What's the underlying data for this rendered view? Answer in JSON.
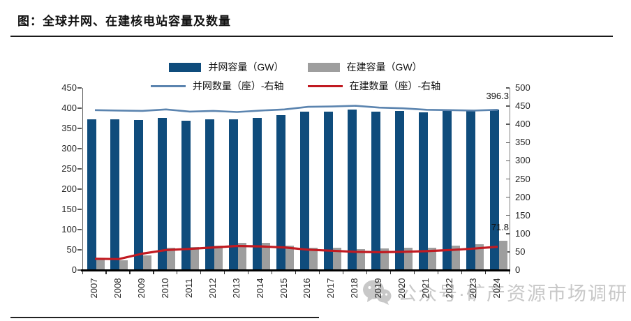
{
  "page": {
    "title": "图：全球并网、在建核电站容量及数量"
  },
  "watermark": {
    "icon": "wechat-icon",
    "text": "公众号·矿产资源市场调研"
  },
  "annotation_grid_capacity_2024": "396.3",
  "annotation_under_capacity_2024": "71.8",
  "chart_data": {
    "type": "bar+line",
    "title": "图：全球并网、在建核电站容量及数量",
    "categories": [
      "2007",
      "2008",
      "2009",
      "2010",
      "2011",
      "2012",
      "2013",
      "2014",
      "2015",
      "2016",
      "2017",
      "2018",
      "2019",
      "2020",
      "2021",
      "2022",
      "2023",
      "2024"
    ],
    "series": [
      {
        "name": "并网容量（GW）",
        "type": "bar",
        "axis": "left",
        "color": "#0f4c7c",
        "values": [
          372.2,
          372.5,
          370.7,
          375.3,
          368.8,
          373.1,
          371.7,
          376.2,
          382.9,
          391.1,
          392.1,
          396.4,
          392.1,
          392.6,
          389.5,
          393.8,
          393.0,
          396.3
        ]
      },
      {
        "name": "在建容量（GW）",
        "type": "bar",
        "axis": "left",
        "color": "#9e9e9e",
        "values": [
          26,
          25,
          37,
          56,
          57,
          60,
          67,
          67,
          60,
          55,
          56,
          52,
          54,
          55,
          56,
          61,
          64,
          71.8
        ]
      },
      {
        "name": "并网数量（座）-右轴",
        "type": "line",
        "axis": "right",
        "color": "#5b84af",
        "values": [
          439,
          438,
          437,
          441,
          435,
          437,
          434,
          438,
          441,
          448,
          449,
          451,
          446,
          444,
          440,
          439,
          438,
          440
        ]
      },
      {
        "name": "在建数量（座）-右轴",
        "type": "line",
        "axis": "right",
        "color": "#c11a21",
        "values": [
          31,
          30,
          45,
          55,
          58,
          62,
          66,
          65,
          62,
          56,
          53,
          50,
          49,
          50,
          52,
          55,
          59,
          64
        ]
      }
    ],
    "left_axis": {
      "min": 0,
      "max": 450,
      "ticks": [
        0,
        50,
        100,
        150,
        200,
        250,
        300,
        350,
        400,
        450
      ]
    },
    "right_axis": {
      "min": 0,
      "max": 500,
      "ticks": [
        0,
        50,
        100,
        150,
        200,
        250,
        300,
        350,
        400,
        450,
        500
      ]
    },
    "grid": "off",
    "legend_position": "top-center",
    "annotations": [
      {
        "text": "396.3",
        "series": 0,
        "category_index": 17
      },
      {
        "text": "71.8",
        "series": 1,
        "category_index": 17
      }
    ]
  }
}
